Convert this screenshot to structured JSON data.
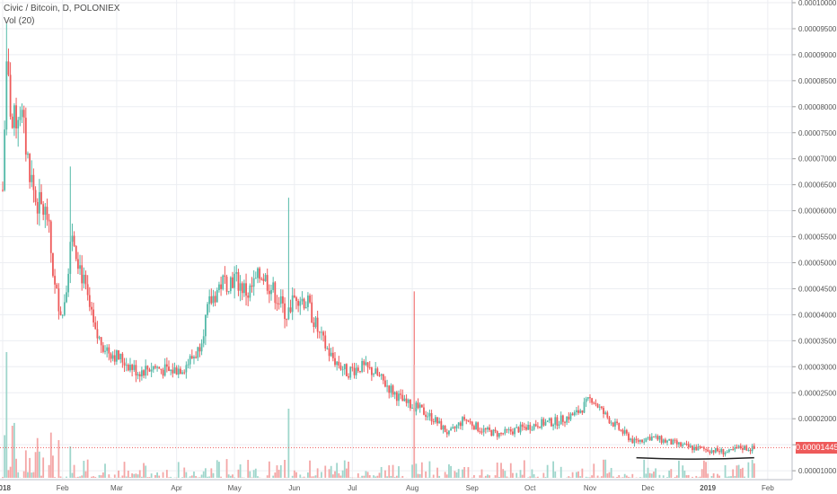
{
  "legend": {
    "title": "Civic / Bitcoin, D, POLONIEX",
    "volume": "Vol (20)"
  },
  "last_price_label": "0.00001445",
  "colors": {
    "up": "#53b9a8",
    "down": "#ee5a5a",
    "up_vol": "#9fd6cc",
    "down_vol": "#f4a6a6",
    "grid": "#eceef2",
    "axis_text": "#555555",
    "last_line": "#ee5a5a",
    "support_line": "#222222"
  },
  "chart_data": {
    "type": "candlestick",
    "title": "Civic / Bitcoin, D, POLONIEX",
    "x_tick_labels": [
      "2018",
      "Feb",
      "Mar",
      "Apr",
      "May",
      "Jun",
      "Jul",
      "Aug",
      "Sep",
      "Oct",
      "Nov",
      "Dec",
      "2019",
      "Feb"
    ],
    "x_tick_dates": [
      "2018-01-01",
      "2018-02-01",
      "2018-03-01",
      "2018-04-01",
      "2018-05-01",
      "2018-06-01",
      "2018-07-01",
      "2018-08-01",
      "2018-09-01",
      "2018-10-01",
      "2018-11-01",
      "2018-12-01",
      "2019-01-01",
      "2019-02-01"
    ],
    "y_tick_labels": [
      "0.00010000",
      "0.00009500",
      "0.00009000",
      "0.00008500",
      "0.00008000",
      "0.00007500",
      "0.00007000",
      "0.00006500",
      "0.00006000",
      "0.00005500",
      "0.00005000",
      "0.00004500",
      "0.00004000",
      "0.00003500",
      "0.00003000",
      "0.00002500",
      "0.00002000",
      "0.00001500",
      "0.00001000"
    ],
    "y_range": [
      9.5e-06,
      0.0001
    ],
    "x_range": [
      "2018-01-01",
      "2019-02-15"
    ],
    "last_price": 1.445e-05,
    "trend_path": [
      [
        "2018-01-01",
        6.4e-05
      ],
      [
        "2018-01-03",
        8.8e-05
      ],
      [
        "2018-01-06",
        7.6e-05
      ],
      [
        "2018-01-10",
        8e-05
      ],
      [
        "2018-01-14",
        7e-05
      ],
      [
        "2018-01-18",
        6.2e-05
      ],
      [
        "2018-01-24",
        5.9e-05
      ],
      [
        "2018-01-28",
        4.5e-05
      ],
      [
        "2018-02-01",
        4e-05
      ],
      [
        "2018-02-06",
        5.6e-05
      ],
      [
        "2018-02-12",
        4.6e-05
      ],
      [
        "2018-02-18",
        3.6e-05
      ],
      [
        "2018-02-25",
        3.3e-05
      ],
      [
        "2018-03-05",
        3.1e-05
      ],
      [
        "2018-03-12",
        2.9e-05
      ],
      [
        "2018-03-20",
        3e-05
      ],
      [
        "2018-03-28",
        2.9e-05
      ],
      [
        "2018-04-05",
        3e-05
      ],
      [
        "2018-04-12",
        3.3e-05
      ],
      [
        "2018-04-18",
        4.2e-05
      ],
      [
        "2018-04-24",
        4.6e-05
      ],
      [
        "2018-05-01",
        4.7e-05
      ],
      [
        "2018-05-08",
        4.4e-05
      ],
      [
        "2018-05-15",
        4.8e-05
      ],
      [
        "2018-05-22",
        4.4e-05
      ],
      [
        "2018-05-28",
        4e-05
      ],
      [
        "2018-06-02",
        4.4e-05
      ],
      [
        "2018-06-08",
        4.2e-05
      ],
      [
        "2018-06-14",
        3.6e-05
      ],
      [
        "2018-06-20",
        3.2e-05
      ],
      [
        "2018-06-28",
        2.9e-05
      ],
      [
        "2018-07-05",
        3e-05
      ],
      [
        "2018-07-12",
        2.9e-05
      ],
      [
        "2018-07-20",
        2.6e-05
      ],
      [
        "2018-07-28",
        2.3e-05
      ],
      [
        "2018-08-04",
        2.2e-05
      ],
      [
        "2018-08-12",
        2e-05
      ],
      [
        "2018-08-20",
        1.7e-05
      ],
      [
        "2018-08-28",
        2e-05
      ],
      [
        "2018-09-05",
        1.8e-05
      ],
      [
        "2018-09-15",
        1.7e-05
      ],
      [
        "2018-09-25",
        1.8e-05
      ],
      [
        "2018-10-05",
        1.9e-05
      ],
      [
        "2018-10-15",
        1.95e-05
      ],
      [
        "2018-10-25",
        2.1e-05
      ],
      [
        "2018-11-02",
        2.4e-05
      ],
      [
        "2018-11-08",
        2.1e-05
      ],
      [
        "2018-11-16",
        1.8e-05
      ],
      [
        "2018-11-24",
        1.55e-05
      ],
      [
        "2018-12-02",
        1.65e-05
      ],
      [
        "2018-12-12",
        1.55e-05
      ],
      [
        "2018-12-22",
        1.45e-05
      ],
      [
        "2019-01-02",
        1.4e-05
      ],
      [
        "2019-01-12",
        1.35e-05
      ],
      [
        "2019-01-18",
        1.45e-05
      ],
      [
        "2019-01-25",
        1.42e-05
      ]
    ],
    "spikes": [
      {
        "date": "2018-01-03",
        "high": 9.6e-05,
        "volume_rel": 1.0
      },
      {
        "date": "2018-02-05",
        "high": 6.85e-05,
        "volume_rel": 0.25
      },
      {
        "date": "2018-05-29",
        "high": 6.25e-05,
        "volume_rel": 0.55
      },
      {
        "date": "2018-08-02",
        "high": 4.45e-05,
        "volume_rel": 0.9
      }
    ],
    "support_line": {
      "start": "2018-11-25",
      "end": "2019-01-25",
      "value": 1.25e-05
    }
  }
}
